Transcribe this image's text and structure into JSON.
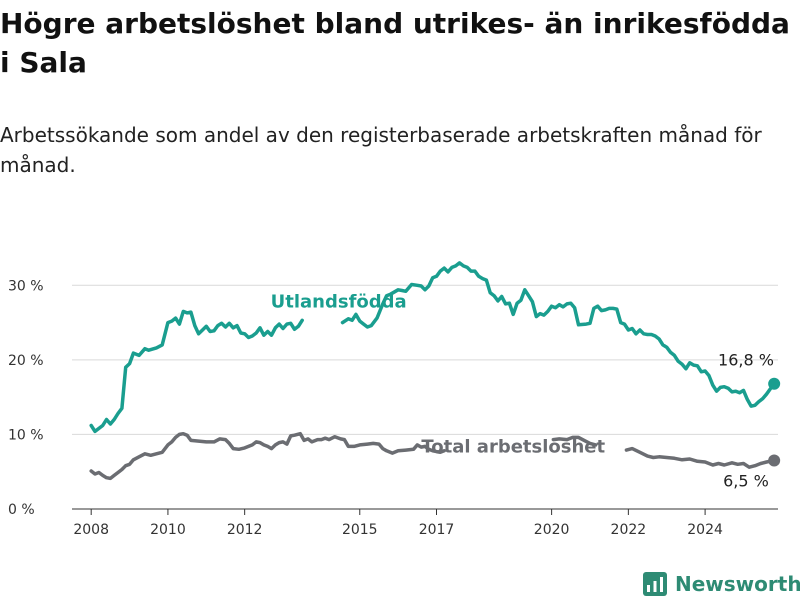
{
  "header": {
    "title": "Högre arbetslöshet bland utrikes- än inrikesfödda i Sala",
    "subtitle": "Arbetssökande som andel av den registerbaserade arbetskraften månad för månad."
  },
  "brand": {
    "name": "Newsworthy",
    "icon": "newsworthy-logo-icon",
    "color": "#2e8b74"
  },
  "chart_data": {
    "type": "line",
    "ylim": [
      0,
      35
    ],
    "yticks": [
      0,
      10,
      20,
      30
    ],
    "ytick_labels": [
      "0 %",
      "10 %",
      "20 %",
      "30 %"
    ],
    "xlim": [
      2007.5,
      2025.9
    ],
    "xticks": [
      2008,
      2010,
      2012,
      2015,
      2017,
      2020,
      2022,
      2024
    ],
    "xtick_labels": [
      "2008",
      "2010",
      "2012",
      "2015",
      "2017",
      "2020",
      "2022",
      "2024"
    ],
    "grid": true,
    "series": [
      {
        "name": "Utlandsfödda",
        "color": "#1a9e8f",
        "end_label": "16,8 %",
        "points": [
          [
            2008.0,
            11.2
          ],
          [
            2008.1,
            10.4
          ],
          [
            2008.3,
            11.2
          ],
          [
            2008.4,
            12.0
          ],
          [
            2008.5,
            11.4
          ],
          [
            2008.6,
            12.0
          ],
          [
            2008.7,
            12.8
          ],
          [
            2008.8,
            13.5
          ],
          [
            2008.9,
            19.0
          ],
          [
            2009.0,
            19.5
          ],
          [
            2009.1,
            20.9
          ],
          [
            2009.25,
            20.6
          ],
          [
            2009.4,
            21.5
          ],
          [
            2009.5,
            21.3
          ],
          [
            2009.7,
            21.6
          ],
          [
            2009.85,
            22.0
          ],
          [
            2010.0,
            25.0
          ],
          [
            2010.1,
            25.2
          ],
          [
            2010.2,
            25.6
          ],
          [
            2010.3,
            24.8
          ],
          [
            2010.4,
            26.5
          ],
          [
            2010.5,
            26.3
          ],
          [
            2010.6,
            26.4
          ],
          [
            2010.7,
            24.6
          ],
          [
            2010.8,
            23.5
          ],
          [
            2010.9,
            24.0
          ],
          [
            2011.0,
            24.5
          ],
          [
            2011.1,
            23.8
          ],
          [
            2011.2,
            23.9
          ],
          [
            2011.3,
            24.6
          ],
          [
            2011.4,
            24.9
          ],
          [
            2011.5,
            24.4
          ],
          [
            2011.6,
            24.9
          ],
          [
            2011.7,
            24.3
          ],
          [
            2011.8,
            24.6
          ],
          [
            2011.9,
            23.6
          ],
          [
            2012.0,
            23.5
          ],
          [
            2012.1,
            23.0
          ],
          [
            2012.2,
            23.2
          ],
          [
            2012.3,
            23.6
          ],
          [
            2012.4,
            24.3
          ],
          [
            2012.5,
            23.3
          ],
          [
            2012.6,
            23.8
          ],
          [
            2012.7,
            23.3
          ],
          [
            2012.8,
            24.3
          ],
          [
            2012.9,
            24.8
          ],
          [
            2013.0,
            24.2
          ],
          [
            2013.1,
            24.8
          ],
          [
            2013.2,
            24.9
          ],
          [
            2013.3,
            24.1
          ],
          [
            2013.4,
            24.5
          ],
          [
            2013.5,
            25.3
          ],
          [
            2013.65,
            null
          ],
          [
            2014.55,
            25.0
          ],
          [
            2014.7,
            25.5
          ],
          [
            2014.8,
            25.3
          ],
          [
            2014.9,
            26.1
          ],
          [
            2015.0,
            25.2
          ],
          [
            2015.1,
            24.8
          ],
          [
            2015.2,
            24.4
          ],
          [
            2015.3,
            24.6
          ],
          [
            2015.45,
            25.6
          ],
          [
            2015.6,
            27.5
          ],
          [
            2015.7,
            28.6
          ],
          [
            2015.8,
            28.8
          ],
          [
            2016.0,
            29.4
          ],
          [
            2016.1,
            29.3
          ],
          [
            2016.2,
            29.2
          ],
          [
            2016.35,
            30.1
          ],
          [
            2016.5,
            30.0
          ],
          [
            2016.6,
            29.9
          ],
          [
            2016.7,
            29.4
          ],
          [
            2016.8,
            29.9
          ],
          [
            2016.9,
            31.0
          ],
          [
            2017.0,
            31.2
          ],
          [
            2017.1,
            31.9
          ],
          [
            2017.2,
            32.3
          ],
          [
            2017.3,
            31.8
          ],
          [
            2017.4,
            32.4
          ],
          [
            2017.5,
            32.6
          ],
          [
            2017.6,
            33.0
          ],
          [
            2017.7,
            32.6
          ],
          [
            2017.8,
            32.4
          ],
          [
            2017.9,
            31.9
          ],
          [
            2018.0,
            31.9
          ],
          [
            2018.1,
            31.2
          ],
          [
            2018.2,
            30.9
          ],
          [
            2018.3,
            30.7
          ],
          [
            2018.4,
            29.0
          ],
          [
            2018.5,
            28.6
          ],
          [
            2018.6,
            27.9
          ],
          [
            2018.7,
            28.5
          ],
          [
            2018.8,
            27.5
          ],
          [
            2018.9,
            27.6
          ],
          [
            2019.0,
            26.1
          ],
          [
            2019.1,
            27.6
          ],
          [
            2019.2,
            28.0
          ],
          [
            2019.3,
            29.4
          ],
          [
            2019.4,
            28.6
          ],
          [
            2019.5,
            27.8
          ],
          [
            2019.6,
            25.8
          ],
          [
            2019.7,
            26.2
          ],
          [
            2019.8,
            26.0
          ],
          [
            2019.9,
            26.5
          ],
          [
            2020.0,
            27.2
          ],
          [
            2020.1,
            27.0
          ],
          [
            2020.2,
            27.4
          ],
          [
            2020.3,
            27.1
          ],
          [
            2020.4,
            27.5
          ],
          [
            2020.5,
            27.6
          ],
          [
            2020.6,
            27.0
          ],
          [
            2020.7,
            24.7
          ],
          [
            2020.9,
            24.8
          ],
          [
            2021.0,
            24.9
          ],
          [
            2021.1,
            26.9
          ],
          [
            2021.2,
            27.2
          ],
          [
            2021.3,
            26.6
          ],
          [
            2021.4,
            26.7
          ],
          [
            2021.5,
            26.9
          ],
          [
            2021.6,
            26.9
          ],
          [
            2021.7,
            26.8
          ],
          [
            2021.8,
            25.0
          ],
          [
            2021.9,
            24.8
          ],
          [
            2022.0,
            24.0
          ],
          [
            2022.1,
            24.2
          ],
          [
            2022.2,
            23.5
          ],
          [
            2022.3,
            24.0
          ],
          [
            2022.4,
            23.5
          ],
          [
            2022.5,
            23.4
          ],
          [
            2022.6,
            23.4
          ],
          [
            2022.7,
            23.2
          ],
          [
            2022.8,
            22.8
          ],
          [
            2022.9,
            22.0
          ],
          [
            2023.0,
            21.7
          ],
          [
            2023.1,
            21.0
          ],
          [
            2023.2,
            20.6
          ],
          [
            2023.3,
            19.8
          ],
          [
            2023.4,
            19.4
          ],
          [
            2023.5,
            18.8
          ],
          [
            2023.6,
            19.6
          ],
          [
            2023.7,
            19.3
          ],
          [
            2023.8,
            19.2
          ],
          [
            2023.9,
            18.4
          ],
          [
            2024.0,
            18.5
          ],
          [
            2024.1,
            17.9
          ],
          [
            2024.2,
            16.6
          ],
          [
            2024.3,
            15.8
          ],
          [
            2024.4,
            16.3
          ],
          [
            2024.5,
            16.4
          ],
          [
            2024.6,
            16.2
          ],
          [
            2024.7,
            15.7
          ],
          [
            2024.8,
            15.8
          ],
          [
            2024.9,
            15.6
          ],
          [
            2025.0,
            15.9
          ],
          [
            2025.1,
            14.7
          ],
          [
            2025.2,
            13.8
          ],
          [
            2025.3,
            13.9
          ],
          [
            2025.4,
            14.4
          ],
          [
            2025.5,
            14.8
          ],
          [
            2025.6,
            15.4
          ],
          [
            2025.7,
            16.1
          ],
          [
            2025.8,
            16.8
          ]
        ]
      },
      {
        "name": "Total arbetslöshet",
        "color": "#6b6d72",
        "end_label": "6,5 %",
        "points": [
          [
            2008.0,
            5.1
          ],
          [
            2008.1,
            4.7
          ],
          [
            2008.2,
            4.9
          ],
          [
            2008.3,
            4.5
          ],
          [
            2008.4,
            4.2
          ],
          [
            2008.5,
            4.1
          ],
          [
            2008.6,
            4.5
          ],
          [
            2008.7,
            4.9
          ],
          [
            2008.8,
            5.3
          ],
          [
            2008.9,
            5.8
          ],
          [
            2009.0,
            6.0
          ],
          [
            2009.1,
            6.6
          ],
          [
            2009.25,
            7.0
          ],
          [
            2009.4,
            7.4
          ],
          [
            2009.55,
            7.2
          ],
          [
            2009.7,
            7.4
          ],
          [
            2009.85,
            7.6
          ],
          [
            2010.0,
            8.6
          ],
          [
            2010.1,
            9.0
          ],
          [
            2010.2,
            9.6
          ],
          [
            2010.3,
            10.0
          ],
          [
            2010.4,
            10.1
          ],
          [
            2010.5,
            9.9
          ],
          [
            2010.6,
            9.2
          ],
          [
            2010.8,
            9.1
          ],
          [
            2011.0,
            9.0
          ],
          [
            2011.2,
            9.0
          ],
          [
            2011.35,
            9.4
          ],
          [
            2011.5,
            9.3
          ],
          [
            2011.6,
            8.8
          ],
          [
            2011.7,
            8.1
          ],
          [
            2011.85,
            8.0
          ],
          [
            2012.0,
            8.2
          ],
          [
            2012.1,
            8.4
          ],
          [
            2012.2,
            8.6
          ],
          [
            2012.3,
            9.0
          ],
          [
            2012.4,
            8.9
          ],
          [
            2012.5,
            8.6
          ],
          [
            2012.6,
            8.4
          ],
          [
            2012.7,
            8.1
          ],
          [
            2012.8,
            8.6
          ],
          [
            2012.9,
            8.9
          ],
          [
            2013.0,
            9.0
          ],
          [
            2013.1,
            8.7
          ],
          [
            2013.2,
            9.8
          ],
          [
            2013.3,
            9.9
          ],
          [
            2013.45,
            10.1
          ],
          [
            2013.55,
            9.2
          ],
          [
            2013.65,
            9.4
          ],
          [
            2013.75,
            9.0
          ],
          [
            2013.9,
            9.3
          ],
          [
            2014.0,
            9.3
          ],
          [
            2014.1,
            9.5
          ],
          [
            2014.2,
            9.3
          ],
          [
            2014.35,
            9.7
          ],
          [
            2014.5,
            9.4
          ],
          [
            2014.6,
            9.3
          ],
          [
            2014.7,
            8.4
          ],
          [
            2014.85,
            8.4
          ],
          [
            2015.0,
            8.6
          ],
          [
            2015.2,
            8.7
          ],
          [
            2015.35,
            8.8
          ],
          [
            2015.5,
            8.7
          ],
          [
            2015.6,
            8.1
          ],
          [
            2015.7,
            7.8
          ],
          [
            2015.85,
            7.5
          ],
          [
            2016.0,
            7.8
          ],
          [
            2016.2,
            7.9
          ],
          [
            2016.4,
            8.0
          ],
          [
            2016.5,
            8.6
          ],
          [
            2016.6,
            8.3
          ],
          [
            2016.7,
            8.4
          ],
          [
            2016.8,
            8.0
          ],
          [
            2016.9,
            7.8
          ],
          [
            2017.0,
            7.7
          ],
          [
            2017.1,
            7.6
          ],
          [
            2017.2,
            7.8
          ],
          [
            2017.35,
            null
          ],
          [
            2020.05,
            9.3
          ],
          [
            2020.2,
            9.4
          ],
          [
            2020.4,
            9.3
          ],
          [
            2020.55,
            9.6
          ],
          [
            2020.7,
            9.6
          ],
          [
            2020.85,
            9.2
          ],
          [
            2021.0,
            8.8
          ],
          [
            2021.15,
            8.6
          ],
          [
            2021.3,
            null
          ],
          [
            2021.95,
            7.9
          ],
          [
            2022.1,
            8.1
          ],
          [
            2022.3,
            7.6
          ],
          [
            2022.5,
            7.1
          ],
          [
            2022.65,
            6.9
          ],
          [
            2022.8,
            7.0
          ],
          [
            2023.0,
            6.9
          ],
          [
            2023.2,
            6.8
          ],
          [
            2023.4,
            6.6
          ],
          [
            2023.6,
            6.7
          ],
          [
            2023.8,
            6.4
          ],
          [
            2024.0,
            6.3
          ],
          [
            2024.2,
            5.9
          ],
          [
            2024.35,
            6.1
          ],
          [
            2024.5,
            5.9
          ],
          [
            2024.7,
            6.2
          ],
          [
            2024.85,
            6.0
          ],
          [
            2025.0,
            6.1
          ],
          [
            2025.15,
            5.6
          ],
          [
            2025.3,
            5.8
          ],
          [
            2025.45,
            6.1
          ],
          [
            2025.6,
            6.3
          ],
          [
            2025.8,
            6.5
          ]
        ]
      }
    ],
    "annotations": [
      {
        "series": 0,
        "text": "Utlandsfödda",
        "x": 2014.45,
        "y": 27.0
      },
      {
        "series": 1,
        "text": "Total arbetslöshet",
        "x": 2019.0,
        "y": 7.6
      }
    ]
  }
}
